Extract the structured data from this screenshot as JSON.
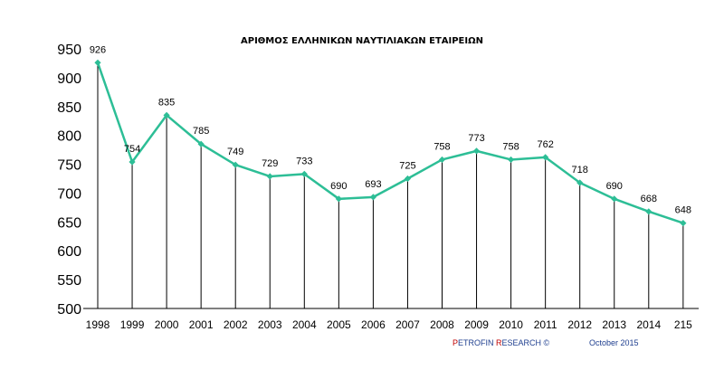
{
  "chart_data": {
    "type": "line",
    "title": "ΑΡΙΘΜΟΣ ΕΛΛΗΝΙΚΩΝ ΝΑΥΤΙΛΙΑΚΩΝ ΕΤΑΙΡΕΙΩΝ",
    "xlabel": "",
    "ylabel": "",
    "categories": [
      "1998",
      "1999",
      "2000",
      "2001",
      "2002",
      "2003",
      "2004",
      "2005",
      "2006",
      "2007",
      "2008",
      "2009",
      "2010",
      "2011",
      "2012",
      "2013",
      "2014",
      "215"
    ],
    "series": [
      {
        "values": [
          926,
          754,
          835,
          785,
          749,
          729,
          733,
          690,
          693,
          725,
          758,
          773,
          758,
          762,
          718,
          690,
          668,
          648
        ]
      }
    ],
    "y_ticks": [
      "950",
      "900",
      "850",
      "800",
      "750",
      "700",
      "650",
      "600",
      "550",
      "500"
    ],
    "ylim": [
      500,
      950
    ],
    "grid": false,
    "drop_lines": true,
    "data_labels": true,
    "legend": "none",
    "colors": {
      "line": "#2dbe96",
      "marker": "#2dbe96",
      "drop_line": "#000000"
    }
  },
  "footer": {
    "source_parts": [
      {
        "text": "P",
        "color": "red"
      },
      {
        "text": "ETROFIN ",
        "color": "blue"
      },
      {
        "text": "R",
        "color": "red"
      },
      {
        "text": "ESEARCH ©",
        "color": "blue"
      }
    ],
    "date": "October 2015"
  }
}
